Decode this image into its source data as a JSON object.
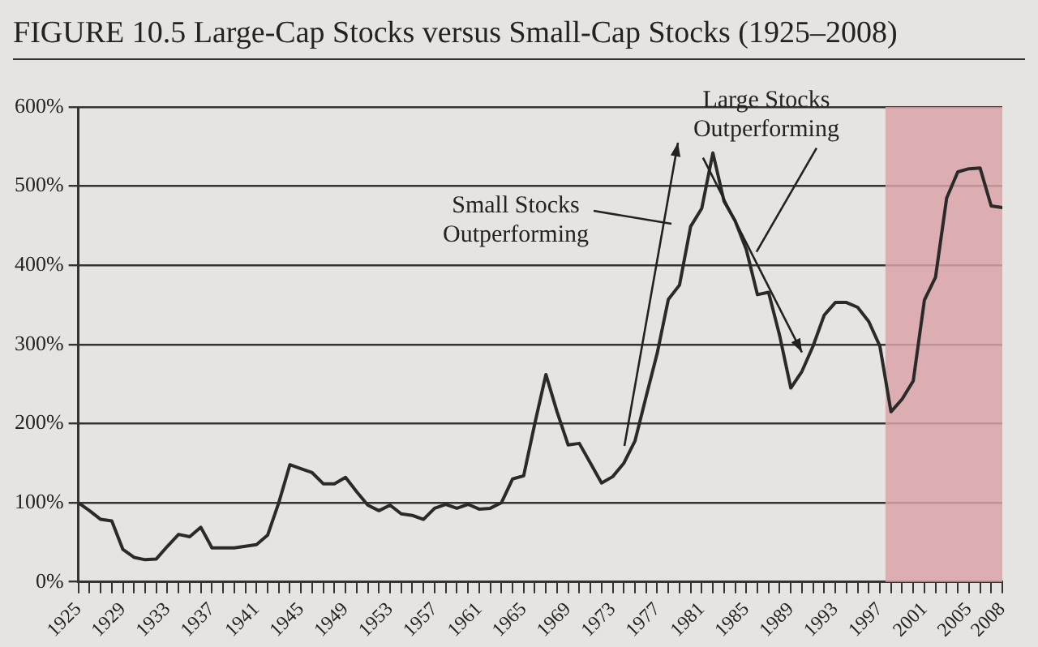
{
  "chart_data": {
    "type": "line",
    "title": "FIGURE 10.5  Large-Cap Stocks versus Small-Cap Stocks (1925–2008)",
    "x": [
      1925,
      1926,
      1927,
      1928,
      1929,
      1930,
      1931,
      1932,
      1933,
      1934,
      1935,
      1936,
      1937,
      1938,
      1939,
      1940,
      1941,
      1942,
      1943,
      1944,
      1945,
      1946,
      1947,
      1948,
      1949,
      1950,
      1951,
      1952,
      1953,
      1954,
      1955,
      1956,
      1957,
      1958,
      1959,
      1960,
      1961,
      1962,
      1963,
      1964,
      1965,
      1966,
      1967,
      1968,
      1969,
      1970,
      1971,
      1972,
      1973,
      1974,
      1975,
      1976,
      1977,
      1978,
      1979,
      1980,
      1981,
      1982,
      1983,
      1984,
      1985,
      1986,
      1987,
      1988,
      1989,
      1990,
      1991,
      1992,
      1993,
      1994,
      1995,
      1996,
      1997,
      1998,
      1999,
      2000,
      2001,
      2002,
      2003,
      2004,
      2005,
      2006,
      2007,
      2008
    ],
    "series": [
      {
        "color": "#2a2a2a",
        "values": [
          100,
          90,
          79,
          77,
          41,
          31,
          28,
          29,
          45,
          60,
          57,
          69,
          43,
          43,
          43,
          45,
          47,
          59,
          100,
          148,
          143,
          138,
          124,
          124,
          132,
          114,
          97,
          90,
          97,
          86,
          84,
          79,
          93,
          98,
          93,
          98,
          92,
          93,
          100,
          130,
          134,
          200,
          262,
          215,
          173,
          175,
          150,
          125,
          133,
          150,
          178,
          234,
          289,
          357,
          375,
          449,
          472,
          542,
          481,
          456,
          420,
          363,
          366,
          311,
          245,
          266,
          298,
          337,
          353,
          353,
          347,
          329,
          298,
          215,
          231,
          254,
          356,
          385,
          485,
          518,
          522,
          523,
          475,
          473
        ]
      }
    ],
    "xlim": [
      1925,
      2008
    ],
    "xticks": [
      1925,
      {
        "value": 1926,
        "label": null
      },
      {
        "value": 1927,
        "label": null
      },
      {
        "value": 1928,
        "label": null
      },
      1929,
      {
        "value": 1930,
        "label": null
      },
      {
        "value": 1931,
        "label": null
      },
      {
        "value": 1932,
        "label": null
      },
      1933,
      {
        "value": 1934,
        "label": null
      },
      {
        "value": 1935,
        "label": null
      },
      {
        "value": 1936,
        "label": null
      },
      1937,
      {
        "value": 1938,
        "label": null
      },
      {
        "value": 1939,
        "label": null
      },
      {
        "value": 1940,
        "label": null
      },
      1941,
      {
        "value": 1942,
        "label": null
      },
      {
        "value": 1943,
        "label": null
      },
      {
        "value": 1944,
        "label": null
      },
      1945,
      {
        "value": 1946,
        "label": null
      },
      {
        "value": 1947,
        "label": null
      },
      {
        "value": 1948,
        "label": null
      },
      1949,
      {
        "value": 1950,
        "label": null
      },
      {
        "value": 1951,
        "label": null
      },
      {
        "value": 1952,
        "label": null
      },
      1953,
      {
        "value": 1954,
        "label": null
      },
      {
        "value": 1955,
        "label": null
      },
      {
        "value": 1956,
        "label": null
      },
      1957,
      {
        "value": 1958,
        "label": null
      },
      {
        "value": 1959,
        "label": null
      },
      {
        "value": 1960,
        "label": null
      },
      1961,
      {
        "value": 1962,
        "label": null
      },
      {
        "value": 1963,
        "label": null
      },
      {
        "value": 1964,
        "label": null
      },
      1965,
      {
        "value": 1966,
        "label": null
      },
      {
        "value": 1967,
        "label": null
      },
      {
        "value": 1968,
        "label": null
      },
      1969,
      {
        "value": 1970,
        "label": null
      },
      {
        "value": 1971,
        "label": null
      },
      {
        "value": 1972,
        "label": null
      },
      1973,
      {
        "value": 1974,
        "label": null
      },
      {
        "value": 1975,
        "label": null
      },
      {
        "value": 1976,
        "label": null
      },
      1977,
      {
        "value": 1978,
        "label": null
      },
      {
        "value": 1979,
        "label": null
      },
      {
        "value": 1980,
        "label": null
      },
      1981,
      {
        "value": 1982,
        "label": null
      },
      {
        "value": 1983,
        "label": null
      },
      {
        "value": 1984,
        "label": null
      },
      1985,
      {
        "value": 1986,
        "label": null
      },
      {
        "value": 1987,
        "label": null
      },
      {
        "value": 1988,
        "label": null
      },
      1989,
      {
        "value": 1990,
        "label": null
      },
      {
        "value": 1991,
        "label": null
      },
      {
        "value": 1992,
        "label": null
      },
      1993,
      {
        "value": 1994,
        "label": null
      },
      {
        "value": 1995,
        "label": null
      },
      {
        "value": 1996,
        "label": null
      },
      1997,
      {
        "value": 1998,
        "label": null
      },
      {
        "value": 1999,
        "label": null
      },
      {
        "value": 2000,
        "label": null
      },
      2001,
      {
        "value": 2002,
        "label": null
      },
      {
        "value": 2003,
        "label": null
      },
      {
        "value": 2004,
        "label": null
      },
      2005,
      {
        "value": 2006,
        "label": null
      },
      {
        "value": 2007,
        "label": null
      },
      2008
    ],
    "ylim": [
      0,
      600
    ],
    "yticks": [
      {
        "value": 0,
        "label": "0%"
      },
      {
        "value": 100,
        "label": "100%"
      },
      {
        "value": 200,
        "label": "200%"
      },
      {
        "value": 300,
        "label": "300%"
      },
      {
        "value": 400,
        "label": "400%"
      },
      {
        "value": 500,
        "label": "500%"
      },
      {
        "value": 600,
        "label": "600%"
      }
    ],
    "grid": "y",
    "legend": false,
    "marker": "none",
    "line_style": "solid",
    "bands": [
      {
        "axis": "x",
        "from": 1997.5,
        "to": 2008,
        "color": "#d9a3a8"
      }
    ],
    "annotations": [
      "Small Stocks Outperforming",
      {
        "text": "Large Stocks Outperforming",
        "x": 1990,
        "y": 290
      }
    ]
  }
}
